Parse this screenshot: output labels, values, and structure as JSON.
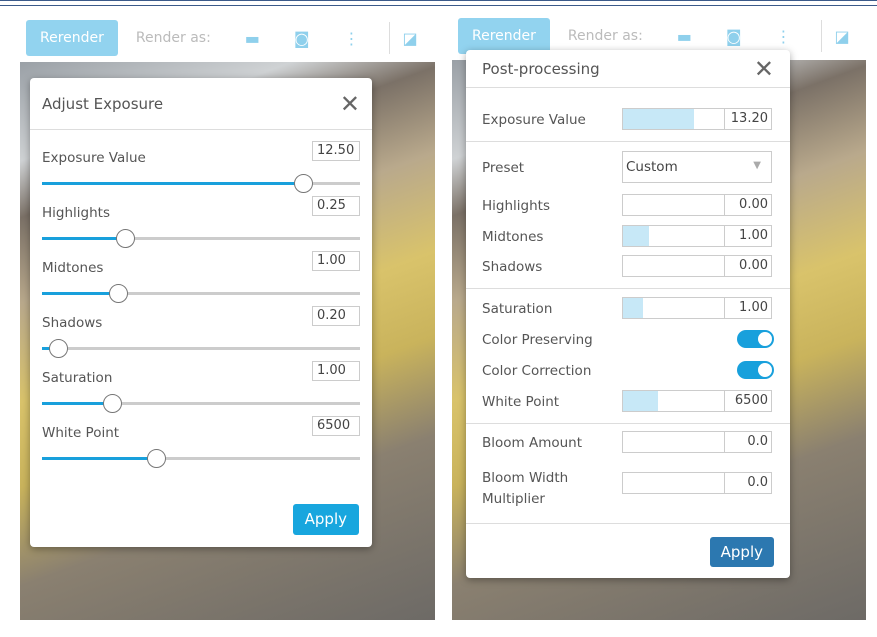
{
  "toolbar": {
    "rerender": "Rerender",
    "render_as": "Render as:"
  },
  "left": {
    "title": "Adjust Exposure",
    "apply": "Apply",
    "sliders": [
      {
        "label": "Exposure Value",
        "value": "12.50",
        "fraction": 0.82
      },
      {
        "label": "Highlights",
        "value": "0.25",
        "fraction": 0.26
      },
      {
        "label": "Midtones",
        "value": "1.00",
        "fraction": 0.24
      },
      {
        "label": "Shadows",
        "value": "0.20",
        "fraction": 0.05
      },
      {
        "label": "Saturation",
        "value": "1.00",
        "fraction": 0.22
      },
      {
        "label": "White Point",
        "value": "6500",
        "fraction": 0.36
      }
    ]
  },
  "right": {
    "title": "Post-processing",
    "apply": "Apply",
    "exposure": {
      "label": "Exposure Value",
      "value": "13.20",
      "fraction": 0.7
    },
    "preset": {
      "label": "Preset",
      "value": "Custom"
    },
    "highlights": {
      "label": "Highlights",
      "value": "0.00",
      "fraction": 0
    },
    "midtones": {
      "label": "Midtones",
      "value": "1.00",
      "fraction": 0.25
    },
    "shadows": {
      "label": "Shadows",
      "value": "0.00",
      "fraction": 0
    },
    "saturation": {
      "label": "Saturation",
      "value": "1.00",
      "fraction": 0.2
    },
    "color_preserving": {
      "label": "Color Preserving",
      "on": true
    },
    "color_correction": {
      "label": "Color Correction",
      "on": true
    },
    "white_point": {
      "label": "White Point",
      "value": "6500",
      "fraction": 0.34
    },
    "bloom_amount": {
      "label": "Bloom Amount",
      "value": "0.0",
      "fraction": 0
    },
    "bloom_width": {
      "label1": "Bloom Width",
      "label2": "Multiplier",
      "value": "0.0",
      "fraction": 0
    }
  }
}
